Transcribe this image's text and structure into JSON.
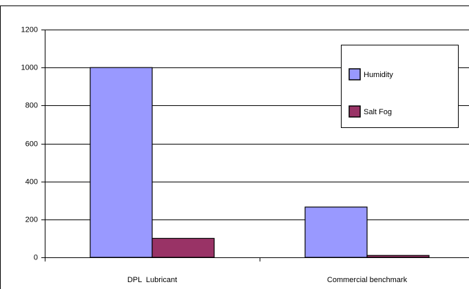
{
  "chart_data": {
    "type": "bar",
    "categories": [
      "DPL  Lubricant",
      "Commercial benchmark"
    ],
    "series": [
      {
        "name": "Humidity",
        "color": "#9999ff",
        "values": [
          1000,
          265
        ]
      },
      {
        "name": "Salt Fog",
        "color": "#993366",
        "values": [
          100,
          10
        ]
      }
    ],
    "ylim": [
      0,
      1200
    ],
    "yticks": [
      0,
      200,
      400,
      600,
      800,
      1000,
      1200
    ],
    "grid": true,
    "legend": "top-right"
  }
}
